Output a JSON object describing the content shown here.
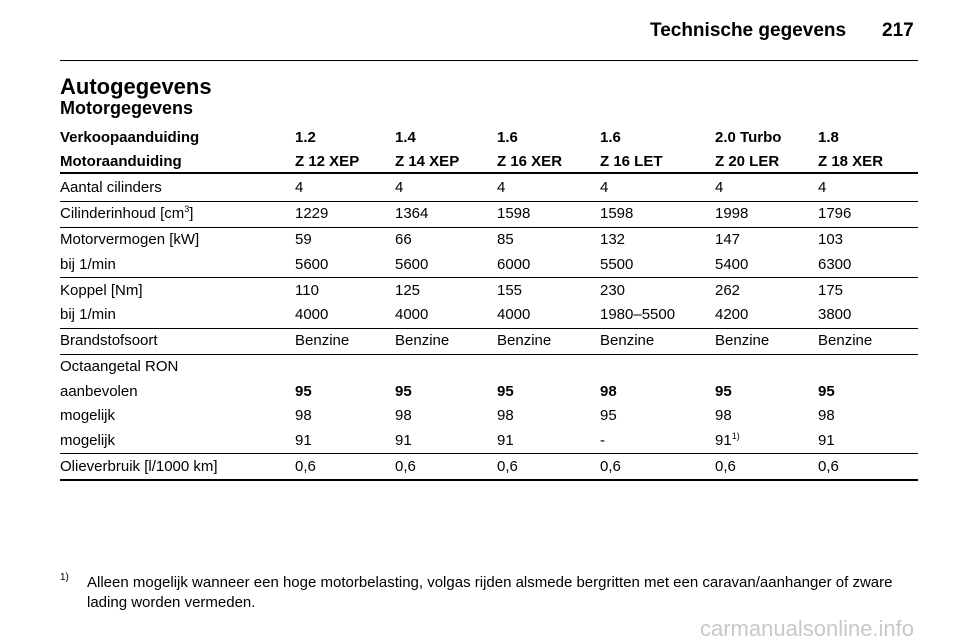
{
  "header": {
    "title": "Technische gegevens",
    "page": "217"
  },
  "heading": "Autogegevens",
  "subheading": "Motorgegevens",
  "table": {
    "head": [
      [
        "Verkoopaanduiding",
        "1.2",
        "1.4",
        "1.6",
        "1.6",
        "2.0 Turbo",
        "1.8"
      ],
      [
        "Motoraanduiding",
        "Z 12 XEP",
        "Z 14 XEP",
        "Z 16 XER",
        "Z 16 LET",
        "Z 20 LER",
        "Z 18 XER"
      ]
    ],
    "groups": [
      {
        "rows": [
          {
            "label": "Aantal cilinders",
            "cells": [
              "4",
              "4",
              "4",
              "4",
              "4",
              "4"
            ]
          }
        ]
      },
      {
        "rows": [
          {
            "label": {
              "text": "Cilinderinhoud [cm",
              "sup": "3",
              "after": "]"
            },
            "cells": [
              "1229",
              "1364",
              "1598",
              "1598",
              "1998",
              "1796"
            ]
          }
        ]
      },
      {
        "rows": [
          {
            "label": "Motorvermogen [kW]",
            "cells": [
              "59",
              "66",
              "85",
              "132",
              "147",
              "103"
            ]
          },
          {
            "label": "bij 1/min",
            "cells": [
              "5600",
              "5600",
              "6000",
              "5500",
              "5400",
              "6300"
            ]
          }
        ]
      },
      {
        "rows": [
          {
            "label": "Koppel [Nm]",
            "cells": [
              "110",
              "125",
              "155",
              "230",
              "262",
              "175"
            ]
          },
          {
            "label": "bij 1/min",
            "cells": [
              "4000",
              "4000",
              "4000",
              "1980–5500",
              "4200",
              "3800"
            ]
          }
        ]
      },
      {
        "rows": [
          {
            "label": "Brandstofsoort",
            "cells": [
              "Benzine",
              "Benzine",
              "Benzine",
              "Benzine",
              "Benzine",
              "Benzine"
            ]
          }
        ]
      },
      {
        "rows": [
          {
            "label": "Octaangetal RON",
            "cells": []
          },
          {
            "label": "aanbevolen",
            "bold": true,
            "cells": [
              "95",
              "95",
              "95",
              "98",
              "95",
              "95"
            ]
          },
          {
            "label": "mogelijk",
            "cells": [
              "98",
              "98",
              "98",
              "95",
              "98",
              "98"
            ]
          },
          {
            "label": "mogelijk",
            "cells": [
              "91",
              "91",
              "91",
              "-",
              {
                "text": "91",
                "sup": "1)"
              },
              "91"
            ]
          }
        ]
      },
      {
        "rows": [
          {
            "label": "Olieverbruik [l/1000 km]",
            "cells": [
              "0,6",
              "0,6",
              "0,6",
              "0,6",
              "0,6",
              "0,6"
            ]
          }
        ]
      }
    ]
  },
  "footnote": {
    "marker": "1)",
    "text": "Alleen mogelijk wanneer een hoge motorbelasting, volgas rijden alsmede bergritten met een caravan/aanhanger of zware lading worden vermeden."
  },
  "watermark": "carmanualsonline.info"
}
